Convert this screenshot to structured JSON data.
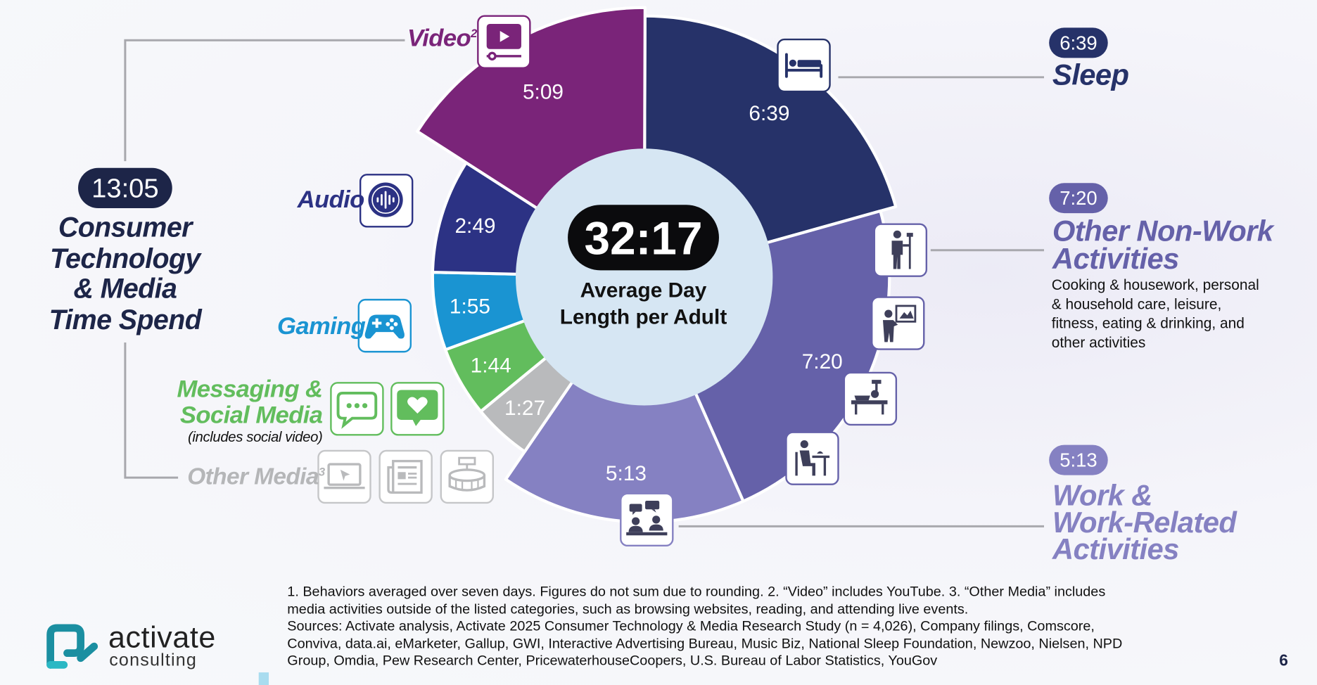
{
  "chart_data": {
    "type": "pie",
    "center": {
      "value": "32:17",
      "label_line1": "Average Day",
      "label_line2": "Length per Adult"
    },
    "slices": [
      {
        "label": "Sleep",
        "display": "6:39",
        "value": 6.65,
        "color": "#263269"
      },
      {
        "label": "Other Non-Work Activities",
        "display": "7:20",
        "value": 7.3333,
        "color": "#6561a9"
      },
      {
        "label": "Work & Work-Related Activities",
        "display": "5:13",
        "value": 5.2167,
        "color": "#8581c2"
      },
      {
        "label": "Other Media",
        "display": "1:27",
        "value": 1.45,
        "color": "#b9babc"
      },
      {
        "label": "Messaging & Social Media",
        "display": "1:44",
        "value": 1.7333,
        "color": "#62bd5d"
      },
      {
        "label": "Gaming",
        "display": "1:55",
        "value": 1.9167,
        "color": "#1a94d2"
      },
      {
        "label": "Audio",
        "display": "2:49",
        "value": 2.8167,
        "color": "#2c3284"
      },
      {
        "label": "Video",
        "display": "5:09",
        "value": 5.15,
        "color": "#7a2479"
      }
    ]
  },
  "labels": {
    "video": "Video",
    "video_sup": "2",
    "audio": "Audio",
    "gaming": "Gaming",
    "messaging_1": "Messaging &",
    "messaging_2": "Social Media",
    "messaging_note": "(includes social video)",
    "other_media": "Other Media",
    "other_media_sup": "3"
  },
  "left_summary": {
    "total": "13:05",
    "line1": "Consumer",
    "line2": "Technology",
    "line3": "& Media",
    "line4": "Time Spend"
  },
  "right": {
    "sleep": {
      "time": "6:39",
      "title": "Sleep"
    },
    "nonwork": {
      "time": "7:20",
      "title1": "Other Non-Work",
      "title2": "Activities",
      "desc1": "Cooking & housework, personal",
      "desc2": "& household care, leisure,",
      "desc3": "fitness, eating & drinking, and",
      "desc4": "other activities"
    },
    "work": {
      "time": "5:13",
      "title1": "Work &",
      "title2": "Work-Related",
      "title3": "Activities"
    }
  },
  "footnote": {
    "line1": "1. Behaviors averaged over seven days. Figures do not sum due to rounding.  2. “Video” includes YouTube.  3. “Other Media” includes",
    "line2": "media activities outside of the listed categories, such as browsing websites, reading, and attending live events.",
    "line3": "Sources: Activate analysis, Activate 2025 Consumer Technology & Media Research Study (n = 4,026), Company filings, Comscore,",
    "line4": "Conviva, data.ai, eMarketer, Gallup, GWI, Interactive Advertising Bureau, Music Biz, National Sleep Foundation, Newzoo, Nielsen, NPD",
    "line5": "Group, Omdia, Pew Research Center, PricewaterhouseCoopers, U.S. Bureau of Labor Statistics, YouGov"
  },
  "brand": {
    "name": "activate",
    "sub": "consulting"
  },
  "page_number": "6",
  "colors": {
    "sleep": "#263269",
    "nonwork": "#6561a9",
    "work": "#8581c2",
    "other_media": "#b9babc",
    "messaging": "#62bd5d",
    "gaming": "#1a94d2",
    "audio": "#2c3284",
    "video": "#7a2479",
    "center": "#d6e6f3",
    "brand_teal": "#1b8fa1"
  }
}
